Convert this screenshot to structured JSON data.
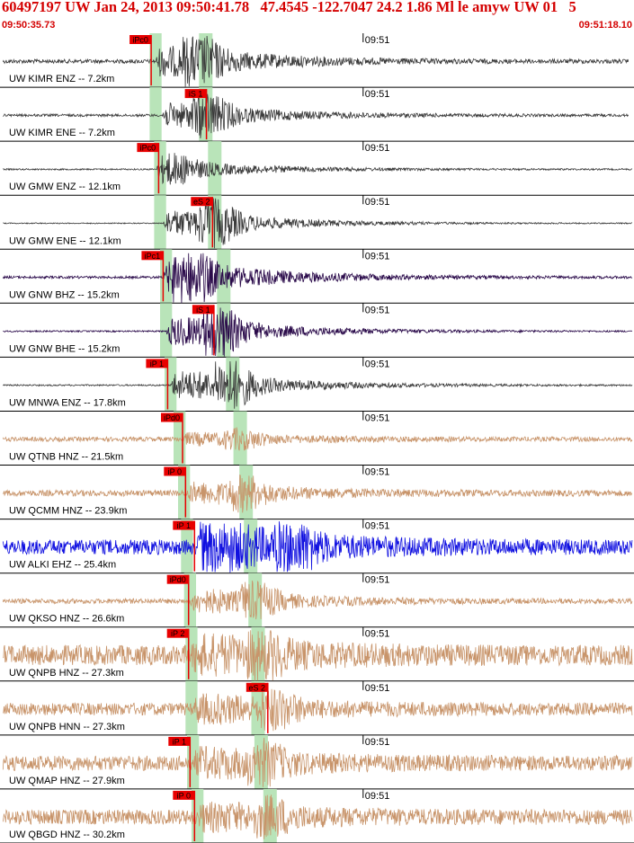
{
  "header": {
    "title": "60497197 UW Jan 24, 2013 09:50:41.78   47.4545 -122.7047 24.2 1.86 Ml le amyw UW 01   5",
    "time_start": "09:50:35.73",
    "time_end": "09:51:18.10"
  },
  "chart_data": {
    "type": "line",
    "title": "60497197 UW Jan 24, 2013 09:50:41.78   47.4545 -122.7047 24.2 1.86 Ml le amyw UW 01   5",
    "time_window": [
      "09:50:35.73",
      "09:51:18.10"
    ],
    "x_unit": "seconds after 09:50:35.73",
    "xlim": [
      0,
      42.37
    ],
    "minute_tick": {
      "label": "09:51",
      "t": 24.27
    },
    "grid": false,
    "colors": {
      "header_text": "#d40000",
      "pick_flag": "#e80000",
      "pick_window": "#b9e4b9",
      "trace_enz": "#3a3a3a",
      "trace_bhz": "#2a0a4a",
      "trace_hnz": "#c8946a",
      "trace_ehz": "#1010e0"
    },
    "traces": [
      {
        "label": "UW KIMR ENZ -- 7.2km",
        "color": "#3a3a3a",
        "amp": 0.55,
        "noise": 0.08,
        "onset": 10.4,
        "peak": 13.2,
        "end": 42.0,
        "band": [
          10.0,
          10.8
        ],
        "band2": [
          13.3,
          14.2
        ],
        "pick": {
          "label": "iPc0",
          "t": 10.1
        }
      },
      {
        "label": "UW KIMR ENE -- 7.2km",
        "color": "#3a3a3a",
        "amp": 0.45,
        "noise": 0.05,
        "onset": 10.8,
        "peak": 13.8,
        "end": 42.0,
        "band": [
          10.0,
          10.8
        ],
        "band2": [
          13.3,
          14.2
        ],
        "pick": {
          "label": "iS 1",
          "t": 13.8
        }
      },
      {
        "label": "UW GMW ENZ -- 12.1km",
        "color": "#3a3a3a",
        "amp": 0.3,
        "noise": 0.03,
        "onset": 10.6,
        "peak": 11.5,
        "end": 42.4,
        "band": [
          10.3,
          11.1
        ],
        "band2": [
          13.9,
          14.8
        ],
        "pick": {
          "label": "iPc0",
          "t": 10.6
        }
      },
      {
        "label": "UW GMW ENE -- 12.1km",
        "color": "#3a3a3a",
        "amp": 0.5,
        "noise": 0.02,
        "onset": 10.9,
        "peak": 14.3,
        "end": 42.4,
        "band": [
          10.3,
          11.1
        ],
        "band2": [
          13.9,
          14.8
        ],
        "pick": {
          "label": "eS 2",
          "t": 14.2
        }
      },
      {
        "label": "UW GNW BHZ -- 15.2km",
        "color": "#2a0a4a",
        "amp": 0.6,
        "noise": 0.05,
        "onset": 10.9,
        "peak": 12.5,
        "end": 42.9,
        "band": [
          10.7,
          11.5
        ],
        "band2": [
          14.5,
          15.4
        ],
        "pick": {
          "label": "iPc1",
          "t": 10.9
        }
      },
      {
        "label": "UW GNW BHE -- 15.2km",
        "color": "#2a0a4a",
        "amp": 0.55,
        "noise": 0.03,
        "onset": 11.1,
        "peak": 14.6,
        "end": 42.9,
        "band": [
          10.7,
          11.5
        ],
        "band2": [
          14.5,
          15.4
        ],
        "pick": {
          "label": "iS 1",
          "t": 14.3
        }
      },
      {
        "label": "UW MNWA ENZ -- 17.8km",
        "color": "#3a3a3a",
        "amp": 0.55,
        "noise": 0.03,
        "onset": 11.4,
        "peak": 15.3,
        "end": 43.2,
        "band": [
          11.0,
          11.8
        ],
        "band2": [
          15.1,
          16.0
        ],
        "pick": {
          "label": "iP 1",
          "t": 11.2
        }
      },
      {
        "label": "UW QTNB HNZ -- 21.5km",
        "color": "#c8946a",
        "amp": 0.2,
        "noise": 0.09,
        "onset": 12.2,
        "peak": 16.0,
        "end": 43.4,
        "band": [
          11.6,
          12.4
        ],
        "band2": [
          15.6,
          16.5
        ],
        "pick": {
          "label": "iPd0",
          "t": 12.2
        }
      },
      {
        "label": "UW QCMM HNZ -- 23.9km",
        "color": "#c8946a",
        "amp": 0.35,
        "noise": 0.12,
        "onset": 12.5,
        "peak": 16.3,
        "end": 43.9,
        "band": [
          11.9,
          12.7
        ],
        "band2": [
          16.0,
          16.9
        ],
        "pick": {
          "label": "iP 0",
          "t": 12.4
        }
      },
      {
        "label": "UW ALKI EHZ -- 25.4km",
        "color": "#1010e0",
        "amp": 0.8,
        "noise": 0.3,
        "onset": 13.1,
        "peak": 19.2,
        "end": 44.0,
        "band": [
          12.1,
          12.9
        ],
        "band2": [
          16.3,
          17.2
        ],
        "pick": {
          "label": "iP 1",
          "t": 13.0
        }
      },
      {
        "label": "UW QKSO HNZ -- 26.6km",
        "color": "#c8946a",
        "amp": 0.4,
        "noise": 0.1,
        "onset": 12.7,
        "peak": 17.0,
        "end": 44.5,
        "band": [
          12.3,
          13.1
        ],
        "band2": [
          16.6,
          17.5
        ],
        "pick": {
          "label": "iPd0",
          "t": 12.6
        }
      },
      {
        "label": "UW QNPB HNZ -- 27.3km",
        "color": "#c8946a",
        "amp": 0.5,
        "noise": 0.4,
        "onset": 12.8,
        "peak": 17.3,
        "end": 44.5,
        "band": [
          12.4,
          13.2
        ],
        "band2": [
          16.8,
          17.7
        ],
        "pick": {
          "label": "iP 2",
          "t": 12.6
        }
      },
      {
        "label": "UW QNPB HNN -- 27.3km",
        "color": "#c8946a",
        "amp": 0.4,
        "noise": 0.25,
        "onset": 12.9,
        "peak": 18.3,
        "end": 44.5,
        "band": [
          12.4,
          13.2
        ],
        "band2": [
          16.8,
          17.7
        ],
        "pick": {
          "label": "eS 2",
          "t": 17.9
        }
      },
      {
        "label": "UW QMAP HNZ -- 27.9km",
        "color": "#c8946a",
        "amp": 0.4,
        "noise": 0.3,
        "onset": 12.9,
        "peak": 17.5,
        "end": 44.5,
        "band": [
          12.5,
          13.3
        ],
        "band2": [
          17.0,
          17.9
        ],
        "pick": {
          "label": "iP 1",
          "t": 12.7
        }
      },
      {
        "label": "UW QBGD HNZ -- 30.2km",
        "color": "#c8946a",
        "amp": 0.35,
        "noise": 0.3,
        "onset": 13.2,
        "peak": 18.0,
        "end": 44.5,
        "band": [
          12.8,
          13.6
        ],
        "band2": [
          17.6,
          18.5
        ],
        "pick": {
          "label": "iP 0",
          "t": 13.0
        }
      }
    ]
  }
}
